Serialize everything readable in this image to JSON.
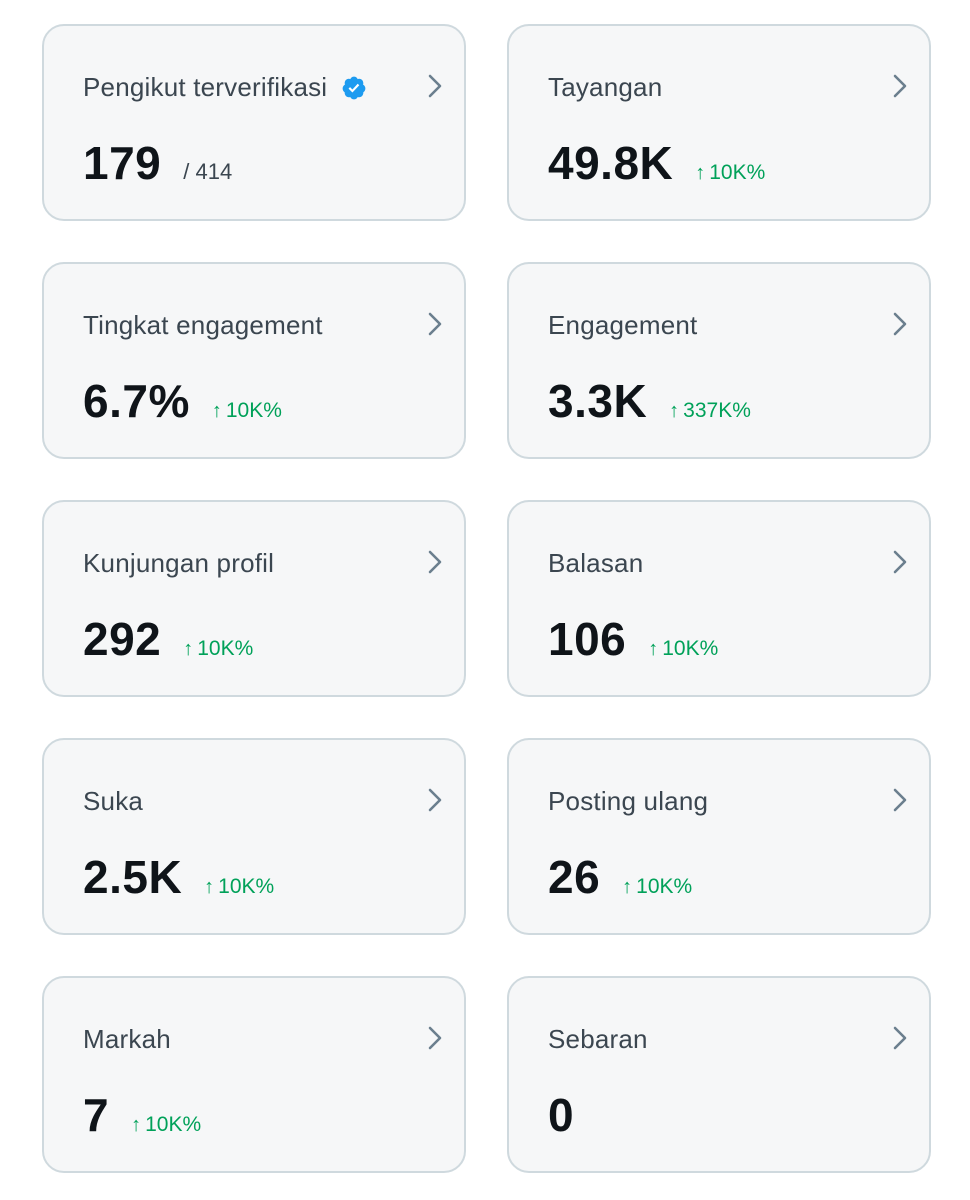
{
  "colors": {
    "card_background": "#f6f7f8",
    "card_border": "#cfd9de",
    "value_text": "#0f1419",
    "label_text": "#3b4650",
    "positive_change": "#00a159",
    "verified_badge": "#1d9bf0",
    "chevron": "#6b7f8e"
  },
  "icons": {
    "chevron": "chevron-right-icon",
    "verified": "verified-badge-icon",
    "change_arrow": "arrow-up-icon"
  },
  "arrow_glyph": "↑",
  "cards": [
    {
      "title": "Pengikut terverifikasi",
      "value": "179",
      "sub": "/ 414",
      "change": ""
    },
    {
      "title": "Tayangan",
      "value": "49.8K",
      "sub": "",
      "change": "10K%"
    },
    {
      "title": "Tingkat engagement",
      "value": "6.7%",
      "sub": "",
      "change": "10K%"
    },
    {
      "title": "Engagement",
      "value": "3.3K",
      "sub": "",
      "change": "337K%"
    },
    {
      "title": "Kunjungan profil",
      "value": "292",
      "sub": "",
      "change": "10K%"
    },
    {
      "title": "Balasan",
      "value": "106",
      "sub": "",
      "change": "10K%"
    },
    {
      "title": "Suka",
      "value": "2.5K",
      "sub": "",
      "change": "10K%"
    },
    {
      "title": "Posting ulang",
      "value": "26",
      "sub": "",
      "change": "10K%"
    },
    {
      "title": "Markah",
      "value": "7",
      "sub": "",
      "change": "10K%"
    },
    {
      "title": "Sebaran",
      "value": "0",
      "sub": "",
      "change": ""
    }
  ]
}
